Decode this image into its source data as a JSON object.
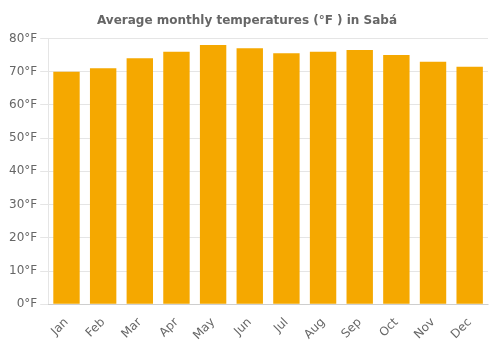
{
  "chart_data": {
    "type": "bar",
    "title": "Average monthly temperatures (°F ) in Sabá",
    "categories": [
      "Jan",
      "Feb",
      "Mar",
      "Apr",
      "May",
      "Jun",
      "Jul",
      "Aug",
      "Sep",
      "Oct",
      "Nov",
      "Dec"
    ],
    "values": [
      70,
      71,
      74,
      76,
      78,
      77,
      75.5,
      76,
      76.5,
      75,
      73,
      71.5
    ],
    "color": "#F5A800",
    "ylim": [
      0,
      80
    ],
    "yticks": [
      {
        "value": 0,
        "label": "0°F"
      },
      {
        "value": 10,
        "label": "10°F"
      },
      {
        "value": 20,
        "label": "20°F"
      },
      {
        "value": 30,
        "label": "30°F"
      },
      {
        "value": 40,
        "label": "40°F"
      },
      {
        "value": 50,
        "label": "50°F"
      },
      {
        "value": 60,
        "label": "60°F"
      },
      {
        "value": 70,
        "label": "70°F"
      },
      {
        "value": 80,
        "label": "80°F"
      }
    ],
    "grid": true
  }
}
